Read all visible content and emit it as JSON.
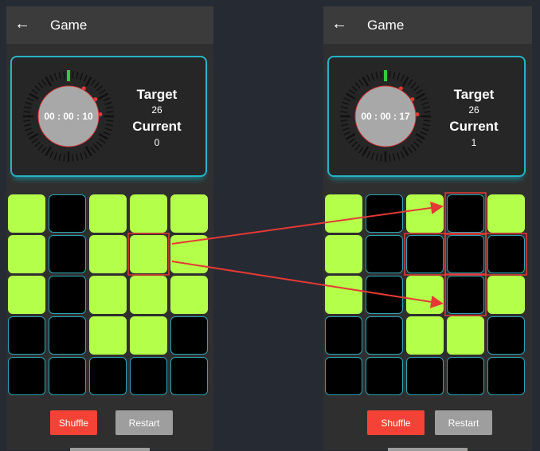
{
  "screens": [
    {
      "header_title": "Game",
      "timer": "00 : 00 : 10",
      "target_label": "Target",
      "target_value": 26,
      "current_label": "Current",
      "current_value": 0,
      "buttons": [
        "Shuffle",
        "Restart"
      ]
    },
    {
      "header_title": "Game",
      "timer": "00 : 00 : 17",
      "target_label": "Target",
      "target_value": 26,
      "current_label": "Current",
      "current_value": 1,
      "buttons": [
        "Shuffle",
        "Restart"
      ]
    }
  ]
}
